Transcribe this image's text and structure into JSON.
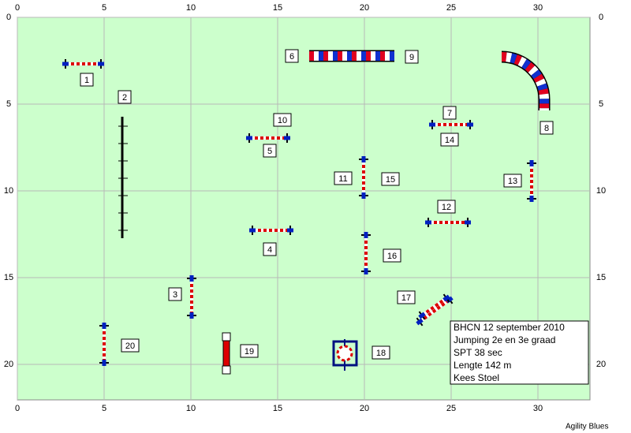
{
  "axes": {
    "x_ticks": [
      0,
      5,
      10,
      15,
      20,
      25,
      30
    ],
    "y_ticks": [
      0,
      5,
      10,
      15,
      20
    ]
  },
  "obstacle_labels": [
    "1",
    "2",
    "10",
    "7",
    "14",
    "6",
    "9",
    "8",
    "5",
    "11",
    "15",
    "13",
    "12",
    "4",
    "16",
    "3",
    "17",
    "20",
    "19",
    "18"
  ],
  "info_box": [
    "BHCN 12 september 2010",
    "Jumping 2e en 3e graad",
    "SPT 38 sec",
    "Lengte 142 m",
    "Kees Stoel"
  ],
  "footer": "Agility Blues"
}
